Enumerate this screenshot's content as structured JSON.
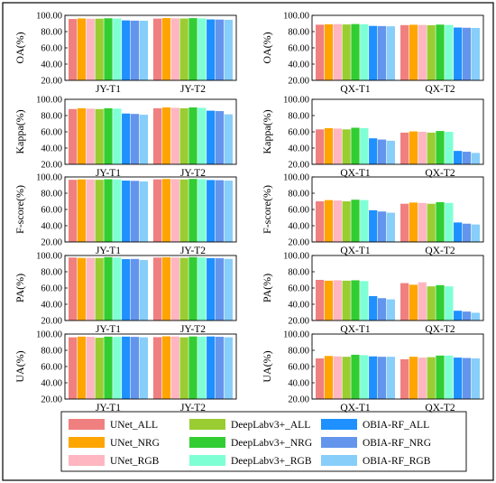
{
  "chart_data": [
    {
      "type": "bar",
      "ylabel": "OA(%)",
      "categories": [
        "JY-T1",
        "JY-T2"
      ],
      "ylim": [
        20,
        100
      ],
      "ticks": [
        20,
        40,
        60,
        80,
        100
      ],
      "values": [
        [
          95.5,
          96.2,
          95.8,
          95.9,
          96.4,
          96.1,
          93.8,
          93.5,
          93.4
        ],
        [
          96.0,
          96.7,
          96.3,
          96.1,
          96.6,
          96.2,
          95.0,
          94.8,
          94.5
        ]
      ]
    },
    {
      "type": "bar",
      "ylabel": "OA(%)",
      "categories": [
        "QX-T1",
        "QX-T2"
      ],
      "ylim": [
        20,
        100
      ],
      "ticks": [
        20,
        40,
        60,
        80,
        100
      ],
      "values": [
        [
          88.5,
          89.0,
          89.2,
          88.8,
          89.3,
          89.0,
          87.0,
          86.8,
          86.5
        ],
        [
          88.0,
          88.4,
          88.2,
          87.8,
          88.6,
          88.2,
          85.0,
          84.7,
          84.5
        ]
      ]
    },
    {
      "type": "bar",
      "ylabel": "Kappa(%)",
      "categories": [
        "JY-T1",
        "JY-T2"
      ],
      "ylim": [
        20,
        100
      ],
      "ticks": [
        20,
        40,
        60,
        80,
        100
      ],
      "values": [
        [
          88.0,
          89.0,
          88.5,
          88.0,
          89.0,
          88.5,
          82.5,
          82.0,
          81.0
        ],
        [
          89.0,
          90.0,
          89.5,
          89.0,
          90.0,
          89.5,
          86.0,
          85.5,
          81.5
        ]
      ]
    },
    {
      "type": "bar",
      "ylabel": "Kappa(%)",
      "categories": [
        "QX-T1",
        "QX-T2"
      ],
      "ylim": [
        20,
        100
      ],
      "ticks": [
        20,
        40,
        60,
        80,
        100
      ],
      "values": [
        [
          63.0,
          64.5,
          64.0,
          63.0,
          65.0,
          64.5,
          52.0,
          50.5,
          49.0
        ],
        [
          59.0,
          60.5,
          60.0,
          59.0,
          61.0,
          60.0,
          36.5,
          35.5,
          34.0
        ]
      ]
    },
    {
      "type": "bar",
      "ylabel": "F-score(%)",
      "categories": [
        "JY-T1",
        "JY-T2"
      ],
      "ylim": [
        20,
        100
      ],
      "ticks": [
        20,
        40,
        60,
        80,
        100
      ],
      "values": [
        [
          96.5,
          97.0,
          96.8,
          96.5,
          97.2,
          96.9,
          95.5,
          95.2,
          94.5
        ],
        [
          97.0,
          97.5,
          97.2,
          97.0,
          97.6,
          97.3,
          96.2,
          96.0,
          95.5
        ]
      ]
    },
    {
      "type": "bar",
      "ylabel": "F-score(%)",
      "categories": [
        "QX-T1",
        "QX-T2"
      ],
      "ylim": [
        20,
        100
      ],
      "ticks": [
        20,
        40,
        60,
        80,
        100
      ],
      "values": [
        [
          70.0,
          71.5,
          71.0,
          70.0,
          72.0,
          71.5,
          59.0,
          57.5,
          56.0
        ],
        [
          67.0,
          68.5,
          68.0,
          67.0,
          69.0,
          68.0,
          44.0,
          42.5,
          41.5
        ]
      ]
    },
    {
      "type": "bar",
      "ylabel": "PA(%)",
      "categories": [
        "JY-T1",
        "JY-T2"
      ],
      "ylim": [
        20,
        100
      ],
      "ticks": [
        20,
        40,
        60,
        80,
        100
      ],
      "values": [
        [
          97.5,
          97.0,
          97.2,
          97.0,
          98.0,
          97.5,
          95.5,
          95.8,
          94.5
        ],
        [
          97.5,
          97.8,
          97.5,
          97.2,
          98.0,
          97.6,
          96.8,
          96.6,
          95.8
        ]
      ]
    },
    {
      "type": "bar",
      "ylabel": "PA(%)",
      "categories": [
        "QX-T1",
        "QX-T2"
      ],
      "ylim": [
        20,
        100
      ],
      "ticks": [
        20,
        40,
        60,
        80,
        100
      ],
      "values": [
        [
          70.0,
          69.0,
          69.5,
          69.0,
          69.5,
          68.5,
          50.0,
          47.5,
          46.0
        ],
        [
          66.0,
          64.0,
          67.0,
          62.0,
          63.5,
          62.0,
          32.0,
          31.0,
          29.5
        ]
      ]
    },
    {
      "type": "bar",
      "ylabel": "UA(%)",
      "categories": [
        "JY-T1",
        "JY-T2"
      ],
      "ylim": [
        20,
        100
      ],
      "ticks": [
        20,
        40,
        60,
        80,
        100
      ],
      "values": [
        [
          96.0,
          96.8,
          96.5,
          95.5,
          96.8,
          96.5,
          96.8,
          96.5,
          96.0
        ],
        [
          96.2,
          97.2,
          96.9,
          96.0,
          97.0,
          96.7,
          97.0,
          96.6,
          96.0
        ]
      ]
    },
    {
      "type": "bar",
      "ylabel": "UA(%)",
      "categories": [
        "QX-T1",
        "QX-T2"
      ],
      "ylim": [
        20,
        100
      ],
      "ticks": [
        20,
        40,
        60,
        80,
        100
      ],
      "values": [
        [
          70.0,
          73.0,
          72.5,
          72.0,
          74.5,
          74.0,
          72.5,
          72.0,
          72.0
        ],
        [
          69.0,
          72.0,
          71.0,
          71.5,
          73.5,
          73.5,
          71.0,
          70.5,
          70.0
        ]
      ]
    }
  ],
  "series": [
    {
      "name": "UNet_ALL",
      "color": "#f08080"
    },
    {
      "name": "UNet_NRG",
      "color": "#ffa500"
    },
    {
      "name": "UNet_RGB",
      "color": "#ffb6c1"
    },
    {
      "name": "DeepLabv3+_ALL",
      "color": "#9acd32"
    },
    {
      "name": "DeepLabv3+_NRG",
      "color": "#32cd32"
    },
    {
      "name": "DeepLabv3+_RGB",
      "color": "#7fffd4"
    },
    {
      "name": "OBIA-RF_ALL",
      "color": "#1e90ff"
    },
    {
      "name": "OBIA-RF_NRG",
      "color": "#6495ed"
    },
    {
      "name": "OBIA-RF_RGB",
      "color": "#87cefa"
    }
  ],
  "tick_format": 2
}
